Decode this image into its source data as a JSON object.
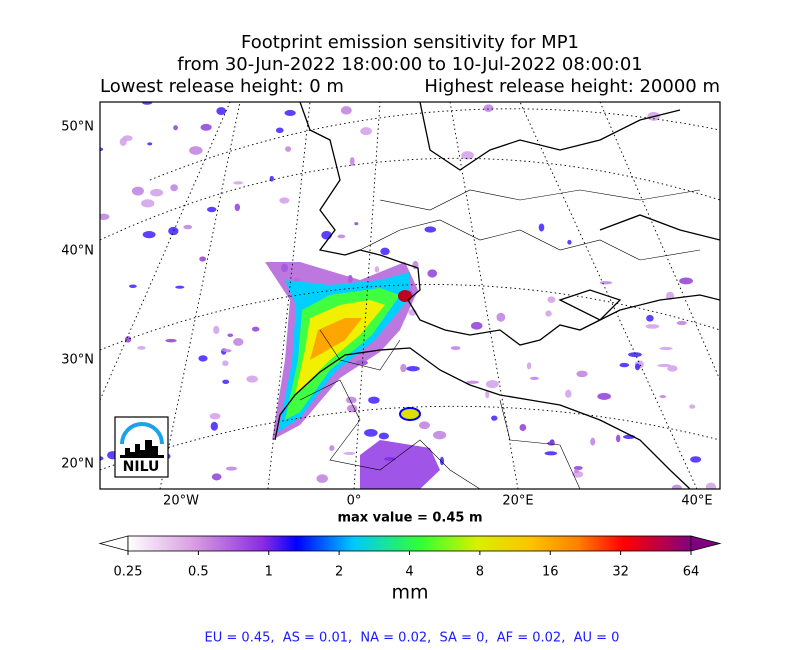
{
  "title": "Footprint emission sensitivity for MP1",
  "subtitle": "from 30-Jun-2022 18:00:00 to 10-Jul-2022 08:00:01",
  "release_heights": {
    "lowest": "Lowest release height: 0 m",
    "highest": "Highest release height: 20000 m"
  },
  "map": {
    "lat_labels": [
      "50°N",
      "40°N",
      "30°N",
      "20°N"
    ],
    "lon_labels": [
      "20°W",
      "0°",
      "20°E",
      "40°E"
    ],
    "max_value_label": "max value = 0.45 m",
    "logo": "NILU"
  },
  "colorbar": {
    "ticks": [
      0.25,
      0.5,
      1,
      2,
      4,
      8,
      16,
      32,
      64
    ],
    "lim": [
      0.25,
      64
    ],
    "scale": "log",
    "unit": "mm"
  },
  "footer": "EU = 0.45,  AS = 0.01,  NA = 0.02,  SA = 0,  AF = 0.02,  AU = 0"
}
